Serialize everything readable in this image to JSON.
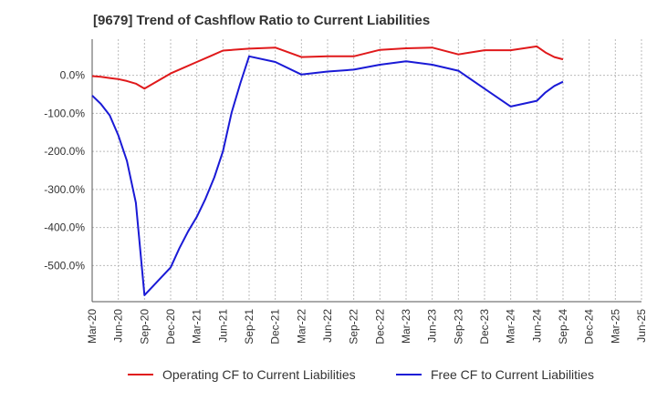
{
  "chart_data": {
    "type": "line",
    "title": "[9679]  Trend of Cashflow Ratio to Current Liabilities",
    "xlabel": "",
    "ylabel": "",
    "x_tick_labels": [
      "Mar-20",
      "Jun-20",
      "Sep-20",
      "Dec-20",
      "Mar-21",
      "Jun-21",
      "Sep-21",
      "Dec-21",
      "Mar-22",
      "Jun-22",
      "Sep-22",
      "Dec-22",
      "Mar-23",
      "Jun-23",
      "Sep-23",
      "Dec-23",
      "Mar-24",
      "Jun-24",
      "Sep-24",
      "Dec-24",
      "Mar-25",
      "Jun-25"
    ],
    "y_tick_labels": [
      "0.0%",
      "-100.0%",
      "-200.0%",
      "-300.0%",
      "-400.0%",
      "-500.0%"
    ],
    "y_ticks": [
      0,
      -100,
      -200,
      -300,
      -400,
      -500
    ],
    "ylim": [
      -595,
      95
    ],
    "grid": true,
    "legend_position": "bottom",
    "colors": {
      "operating": "#e0191b",
      "free": "#1a1ad6",
      "grid": "#bbbbbb",
      "axis": "#555555"
    },
    "series": [
      {
        "name": "Operating CF to Current Liabilities",
        "color": "#e0191b",
        "points": [
          [
            0,
            -2
          ],
          [
            0.33,
            -4
          ],
          [
            0.67,
            -7
          ],
          [
            1,
            -10
          ],
          [
            1.33,
            -15
          ],
          [
            1.67,
            -22
          ],
          [
            2,
            -35
          ],
          [
            3,
            5
          ],
          [
            3.5,
            20
          ],
          [
            4,
            35
          ],
          [
            4.5,
            50
          ],
          [
            5,
            65
          ],
          [
            6,
            70
          ],
          [
            7,
            73
          ],
          [
            8,
            48
          ],
          [
            9,
            50
          ],
          [
            10,
            50
          ],
          [
            11,
            67
          ],
          [
            12,
            71
          ],
          [
            13,
            73
          ],
          [
            14,
            55
          ],
          [
            15,
            66
          ],
          [
            16,
            66
          ],
          [
            17,
            76
          ],
          [
            17.33,
            60
          ],
          [
            17.67,
            48
          ],
          [
            18,
            42
          ]
        ]
      },
      {
        "name": "Free CF to Current Liabilities",
        "color": "#1a1ad6",
        "points": [
          [
            0,
            -53
          ],
          [
            0.33,
            -75
          ],
          [
            0.67,
            -105
          ],
          [
            1,
            -158
          ],
          [
            1.33,
            -225
          ],
          [
            1.67,
            -335
          ],
          [
            2,
            -578
          ],
          [
            3,
            -505
          ],
          [
            3.33,
            -455
          ],
          [
            3.67,
            -410
          ],
          [
            4,
            -372
          ],
          [
            4.33,
            -325
          ],
          [
            4.67,
            -268
          ],
          [
            5,
            -200
          ],
          [
            5.33,
            -98
          ],
          [
            5.67,
            -20
          ],
          [
            6,
            50
          ],
          [
            7,
            35
          ],
          [
            8,
            2
          ],
          [
            9,
            10
          ],
          [
            10,
            15
          ],
          [
            11,
            28
          ],
          [
            12,
            37
          ],
          [
            13,
            28
          ],
          [
            14,
            12
          ],
          [
            15,
            -35
          ],
          [
            16,
            -82
          ],
          [
            17,
            -67
          ],
          [
            17.33,
            -45
          ],
          [
            17.67,
            -28
          ],
          [
            18,
            -17
          ]
        ]
      }
    ]
  }
}
